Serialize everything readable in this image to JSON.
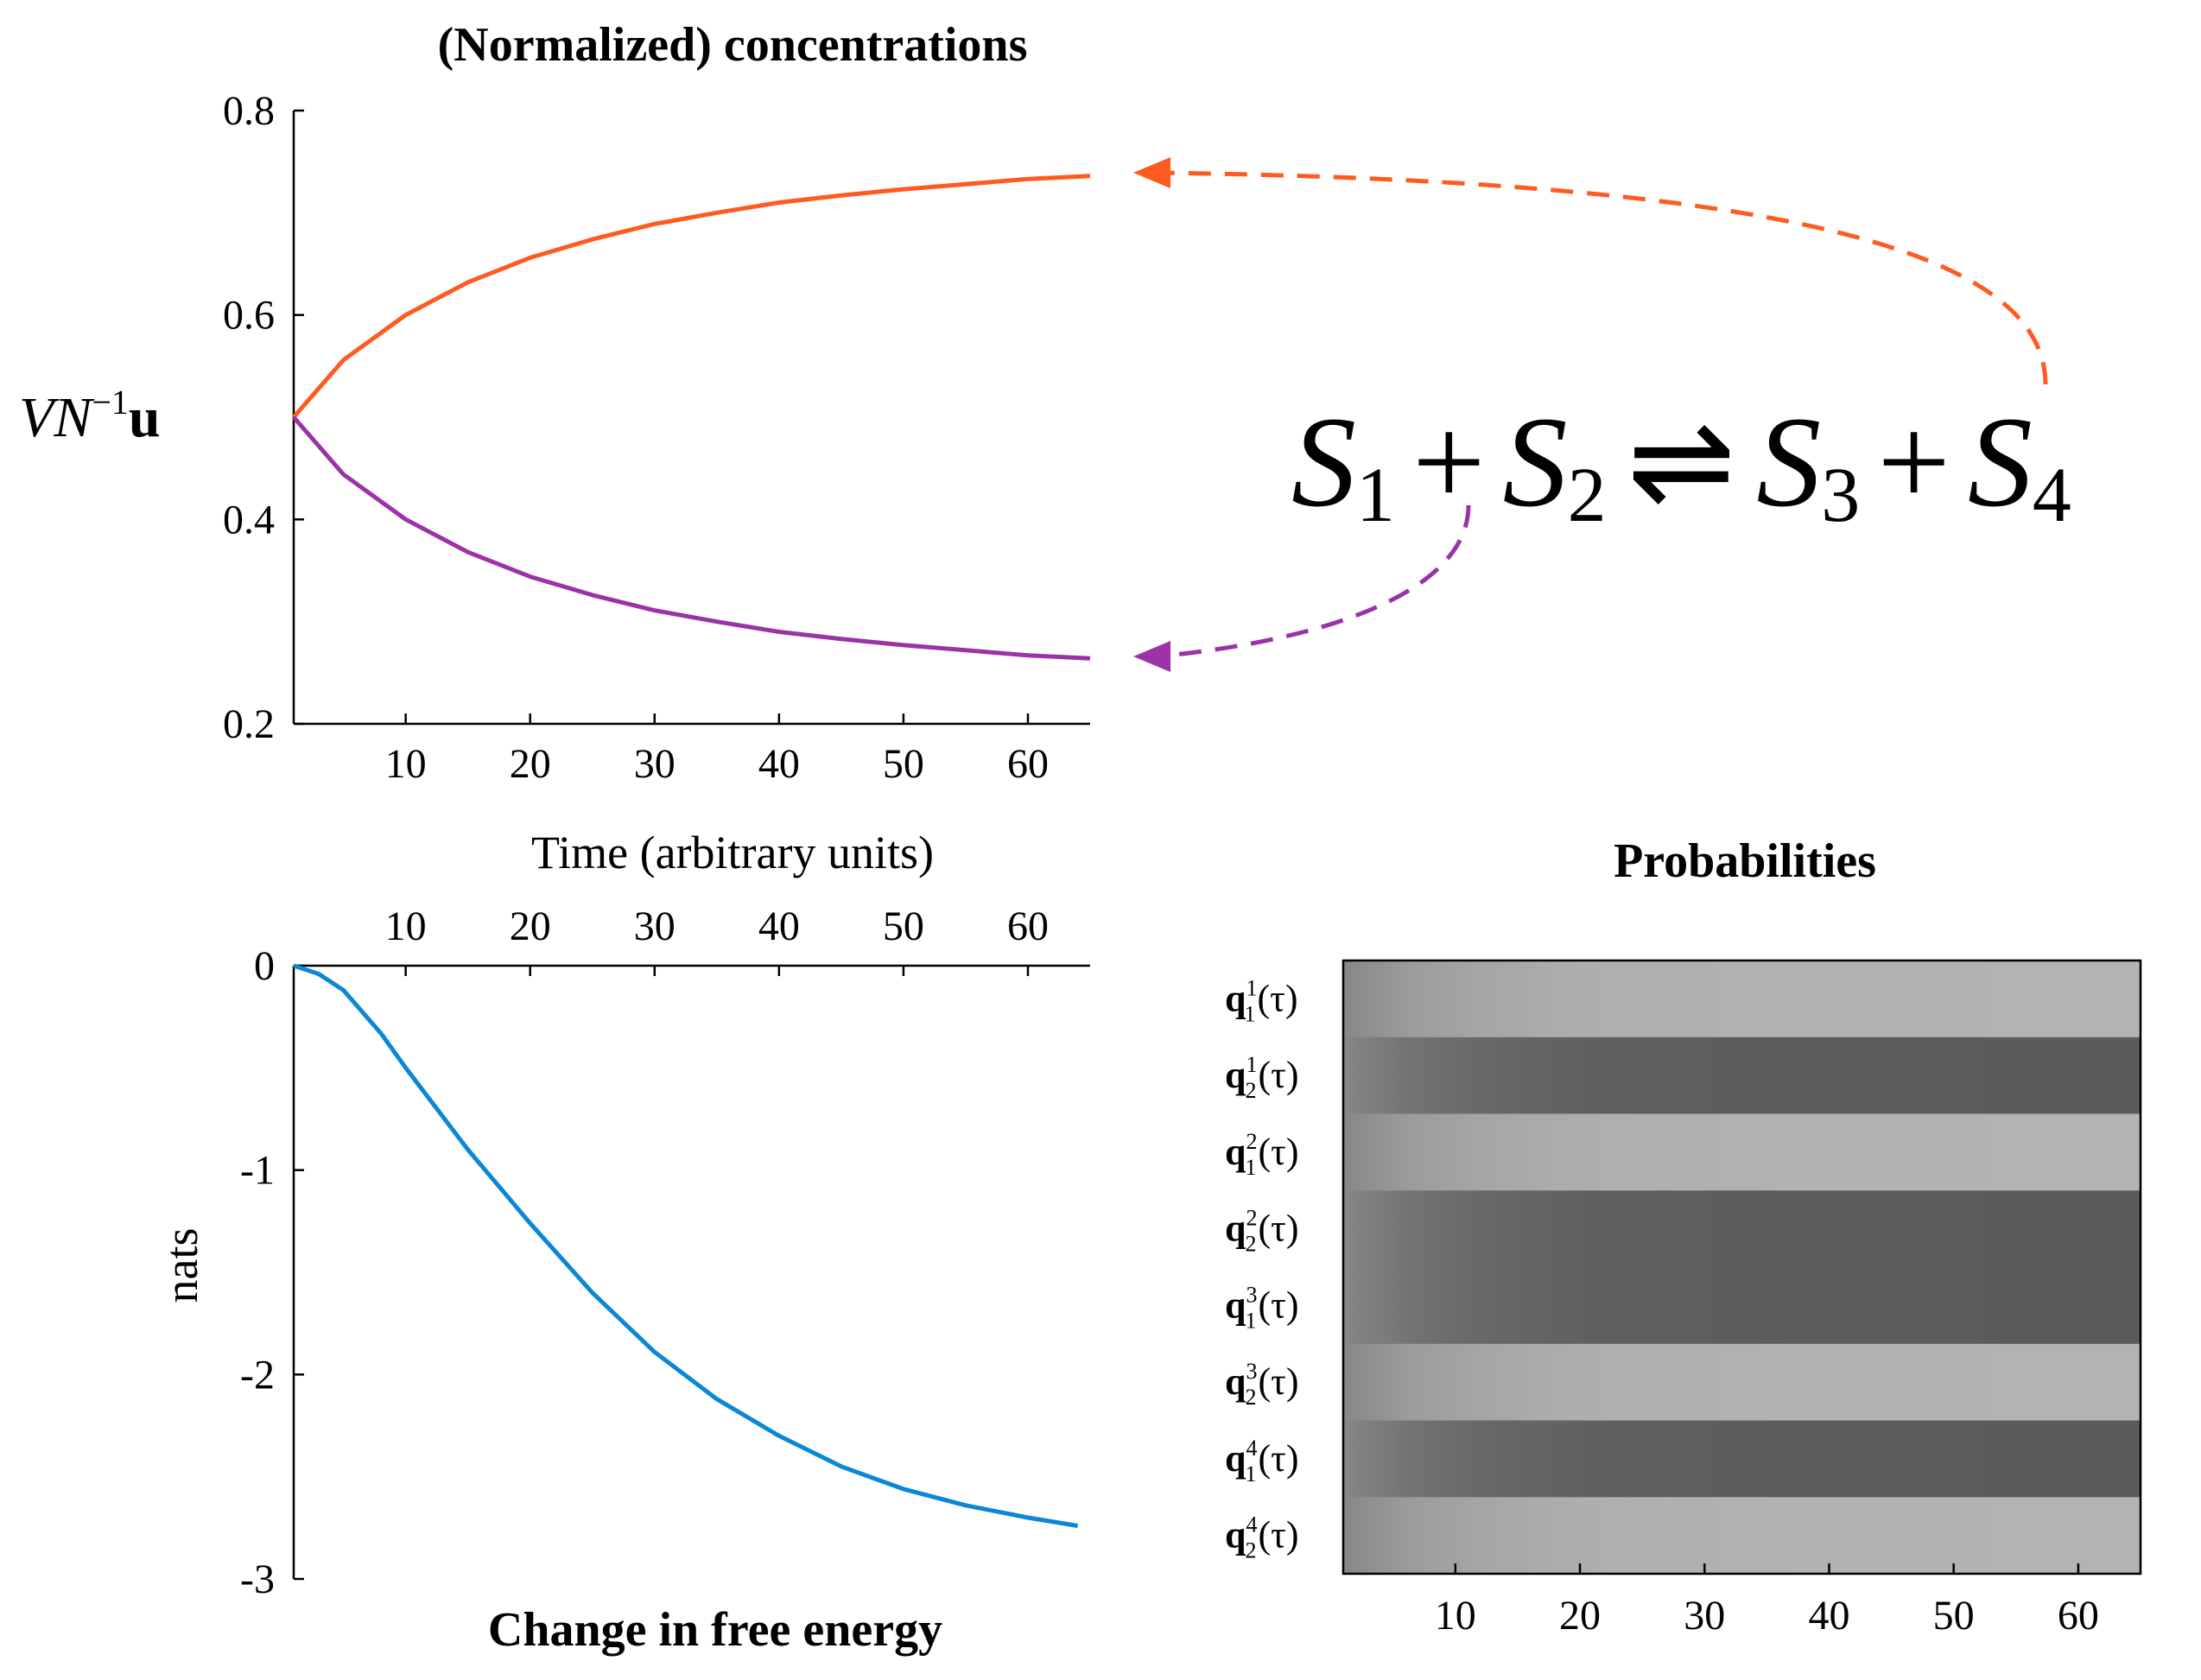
{
  "colors": {
    "s34": "#ff5a1f",
    "s12": "#9b32a8",
    "energy": "#0a87d6",
    "axis": "#000000"
  },
  "panels": {
    "concentrations": {
      "title": "(Normalized)  concentrations",
      "xlabel": "Time (arbitrary  units)",
      "ylabel_var": "VN",
      "ylabel_exp": "−1",
      "ylabel_bold": "u"
    },
    "energy": {
      "title": "Change in  free energy",
      "ylabel": "nats"
    },
    "probabilities": {
      "title": "Probabilities"
    }
  },
  "equation": {
    "s1": "S",
    "s1_sub": "1",
    "plus1": "+",
    "s2": "S",
    "s2_sub": "2",
    "arrow": "⇌",
    "s3": "S",
    "s3_sub": "3",
    "plus2": "+",
    "s4": "S",
    "s4_sub": "4"
  },
  "chart_data": [
    {
      "id": "concentrations",
      "type": "line",
      "title": "(Normalized)  concentrations",
      "xlabel": "Time (arbitrary  units)",
      "ylabel": "VN^-1 u",
      "xlim": [
        1,
        65
      ],
      "ylim": [
        0.2,
        0.8
      ],
      "xticks": [
        10,
        20,
        30,
        40,
        50,
        60
      ],
      "yticks": [
        0.2,
        0.4,
        0.6,
        0.8
      ],
      "x": [
        1,
        5,
        10,
        15,
        20,
        25,
        30,
        35,
        40,
        45,
        50,
        55,
        60,
        65
      ],
      "series": [
        {
          "name": "S3 + S4",
          "values": [
            0.5,
            0.556,
            0.6,
            0.632,
            0.656,
            0.674,
            0.689,
            0.7,
            0.71,
            0.717,
            0.723,
            0.728,
            0.733,
            0.736
          ]
        },
        {
          "name": "S1 + S2",
          "values": [
            0.5,
            0.444,
            0.4,
            0.368,
            0.344,
            0.326,
            0.311,
            0.3,
            0.29,
            0.283,
            0.277,
            0.272,
            0.267,
            0.264
          ]
        }
      ],
      "grid": false
    },
    {
      "id": "energy",
      "type": "line",
      "title": "Change in  free energy",
      "xlabel": "",
      "ylabel": "nats",
      "xlim": [
        1,
        65
      ],
      "ylim": [
        -3,
        0
      ],
      "xticks": [
        10,
        20,
        30,
        40,
        50,
        60
      ],
      "yticks": [
        0,
        -1,
        -2,
        -3
      ],
      "x": [
        1,
        3,
        5,
        8,
        10,
        13,
        15,
        20,
        25,
        30,
        35,
        40,
        45,
        50,
        55,
        60,
        64
      ],
      "series": [
        {
          "name": "free energy",
          "values": [
            0,
            -0.04,
            -0.12,
            -0.33,
            -0.5,
            -0.74,
            -0.9,
            -1.26,
            -1.6,
            -1.89,
            -2.12,
            -2.3,
            -2.45,
            -2.56,
            -2.64,
            -2.7,
            -2.74
          ]
        }
      ],
      "grid": false
    },
    {
      "id": "probabilities",
      "type": "heatmap",
      "title": "Probabilities",
      "xlim": [
        1,
        65
      ],
      "xticks": [
        10,
        20,
        30,
        40,
        50,
        60
      ],
      "rows": [
        {
          "sym": "q",
          "sub": "1",
          "sup": "1",
          "arg": "(τ)",
          "final": 0.73
        },
        {
          "sym": "q",
          "sub": "2",
          "sup": "1",
          "arg": "(τ)",
          "final": 0.27
        },
        {
          "sym": "q",
          "sub": "1",
          "sup": "2",
          "arg": "(τ)",
          "final": 0.73
        },
        {
          "sym": "q",
          "sub": "2",
          "sup": "2",
          "arg": "(τ)",
          "final": 0.27
        },
        {
          "sym": "q",
          "sub": "1",
          "sup": "3",
          "arg": "(τ)",
          "final": 0.27
        },
        {
          "sym": "q",
          "sub": "2",
          "sup": "3",
          "arg": "(τ)",
          "final": 0.73
        },
        {
          "sym": "q",
          "sub": "1",
          "sup": "4",
          "arg": "(τ)",
          "final": 0.27
        },
        {
          "sym": "q",
          "sub": "2",
          "sup": "4",
          "arg": "(τ)",
          "final": 0.73
        }
      ],
      "initial": 0.5
    }
  ]
}
